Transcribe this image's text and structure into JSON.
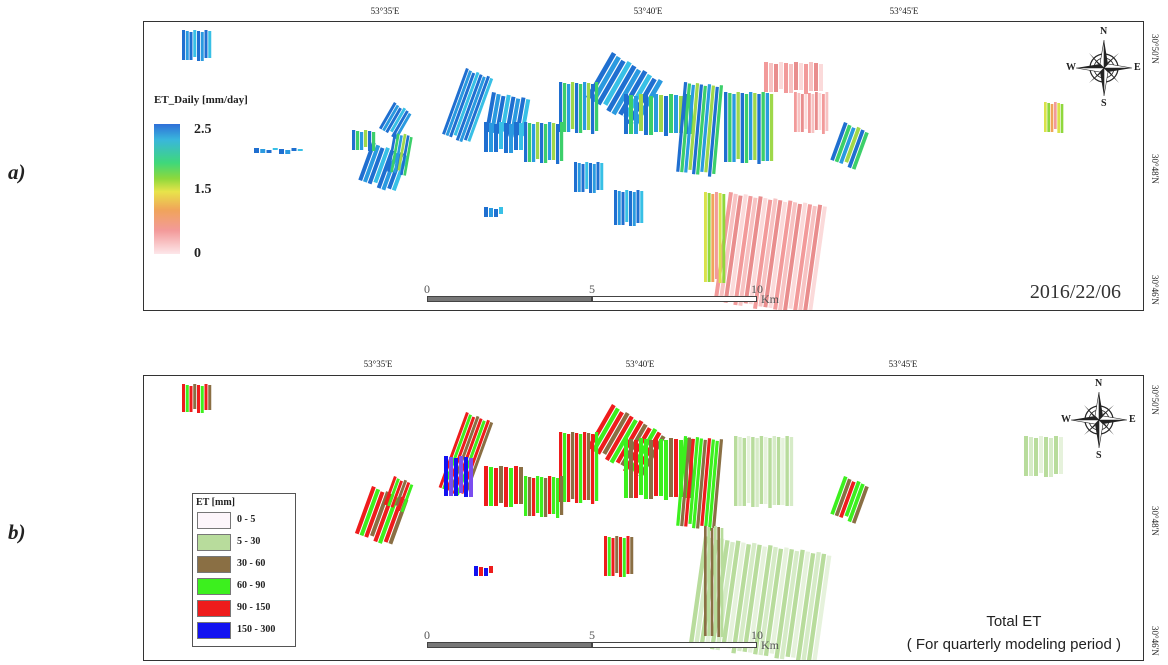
{
  "panels": [
    {
      "letter": "a)",
      "lon_ticks": [
        "53°35'E",
        "53°40'E",
        "53°45'E"
      ],
      "lat_ticks": [
        "30°50'N",
        "30°48'N",
        "30°46'N"
      ],
      "legend": {
        "title": "ET_Daily [mm/day]",
        "labels": [
          "2.5",
          "1.5",
          "0"
        ]
      },
      "scale": {
        "ticks": [
          "0",
          "5",
          "10"
        ],
        "unit": "Km"
      },
      "annotation": "2016/22/06",
      "compass": {
        "n": "N",
        "s": "S",
        "e": "E",
        "w": "W"
      }
    },
    {
      "letter": "b)",
      "lon_ticks": [
        "53°35'E",
        "53°40'E",
        "53°45'E"
      ],
      "lat_ticks": [
        "30°50'N",
        "30°48'N",
        "30°46'N"
      ],
      "legend": {
        "title": "ET [mm]",
        "classes": [
          {
            "label": "0 - 5",
            "color": "#fdf6fb"
          },
          {
            "label": "5 - 30",
            "color": "#b8dc9c"
          },
          {
            "label": "30 - 60",
            "color": "#8a6f44"
          },
          {
            "label": "60 - 90",
            "color": "#3cf01e"
          },
          {
            "label": "90 - 150",
            "color": "#ee1c1c"
          },
          {
            "label": "150 - 300",
            "color": "#1212f0"
          }
        ]
      },
      "scale": {
        "ticks": [
          "0",
          "5",
          "10"
        ],
        "unit": "Km"
      },
      "annotation_line1": "Total  ET",
      "annotation_line2": "( For quarterly modeling period )",
      "compass": {
        "n": "N",
        "s": "S",
        "e": "E",
        "w": "W"
      }
    }
  ]
}
